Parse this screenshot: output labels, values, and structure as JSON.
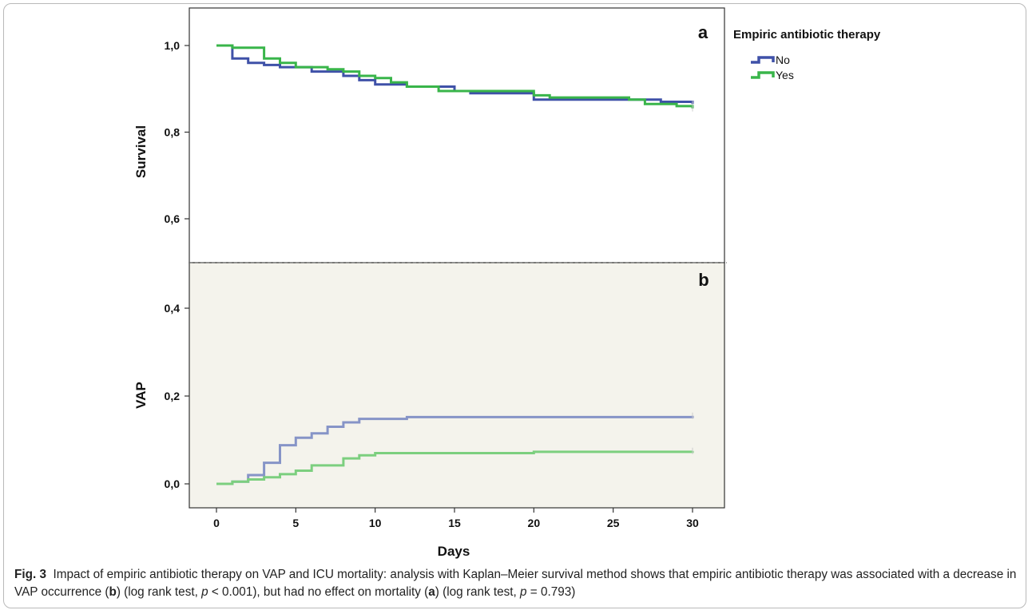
{
  "chart_data": [
    {
      "panel": "a",
      "type": "line",
      "step": true,
      "ylabel": "Survival",
      "xlabel": "",
      "xlim": [
        0,
        30
      ],
      "ylim": [
        0.5,
        1.05
      ],
      "yticks": [
        "1,0",
        "0,8",
        "0,6"
      ],
      "ytick_values": [
        1.0,
        0.8,
        0.6
      ],
      "background": "#ffffff",
      "series": [
        {
          "name": "No",
          "color": "#3f51a8",
          "x": [
            0,
            1,
            2,
            3,
            4,
            6,
            8,
            9,
            10,
            12,
            15,
            16,
            20,
            28,
            30
          ],
          "y": [
            1.0,
            0.97,
            0.96,
            0.955,
            0.95,
            0.94,
            0.93,
            0.92,
            0.91,
            0.905,
            0.895,
            0.89,
            0.875,
            0.87,
            0.865
          ]
        },
        {
          "name": "Yes",
          "color": "#39b54a",
          "x": [
            0,
            1,
            3,
            4,
            5,
            7,
            8,
            9,
            10,
            11,
            12,
            13,
            14,
            20,
            21,
            26,
            27,
            29,
            30
          ],
          "y": [
            1.0,
            0.995,
            0.97,
            0.96,
            0.95,
            0.945,
            0.94,
            0.93,
            0.925,
            0.915,
            0.905,
            0.905,
            0.895,
            0.885,
            0.88,
            0.875,
            0.865,
            0.86,
            0.855
          ]
        }
      ]
    },
    {
      "panel": "b",
      "type": "line",
      "step": true,
      "ylabel": "VAP",
      "xlabel": "Days",
      "xlim": [
        0,
        30
      ],
      "ylim": [
        -0.05,
        0.5
      ],
      "xticks": [
        "0",
        "5",
        "10",
        "15",
        "20",
        "25",
        "30"
      ],
      "xtick_values": [
        0,
        5,
        10,
        15,
        20,
        25,
        30
      ],
      "yticks": [
        "0,4",
        "0,2",
        "0,0"
      ],
      "ytick_values": [
        0.4,
        0.2,
        0.0
      ],
      "background": "#f4f3ec",
      "series": [
        {
          "name": "No",
          "color": "#8694c7",
          "x": [
            0,
            1,
            2,
            3,
            4,
            5,
            6,
            7,
            8,
            9,
            12,
            30
          ],
          "y": [
            0.0,
            0.005,
            0.02,
            0.048,
            0.088,
            0.105,
            0.115,
            0.13,
            0.14,
            0.148,
            0.152,
            0.155
          ]
        },
        {
          "name": "Yes",
          "color": "#7ccf7f",
          "x": [
            0,
            1,
            2,
            3,
            4,
            5,
            6,
            8,
            9,
            10,
            20,
            30
          ],
          "y": [
            0.0,
            0.005,
            0.01,
            0.015,
            0.022,
            0.03,
            0.042,
            0.058,
            0.065,
            0.07,
            0.073,
            0.075
          ]
        }
      ]
    }
  ],
  "panel_labels": {
    "a": "a",
    "b": "b"
  },
  "legend": {
    "title": "Empiric antibiotic therapy",
    "items": [
      {
        "label": "No",
        "color": "#3f51a8"
      },
      {
        "label": "Yes",
        "color": "#39b54a"
      }
    ]
  },
  "caption": {
    "fig_label": "Fig. 3",
    "text_1": "Impact of empiric antibiotic therapy on VAP and ICU mortality: analysis with Kaplan–Meier survival method shows that empiric antibiotic therapy was associated with a decrease in VAP occurrence (",
    "b_label": "b",
    "text_2": ") (log rank test, ",
    "p_symbol": "p",
    "text_3": " < 0.001), but had no effect on mortality (",
    "a_label": "a",
    "text_4": ") (log rank test, ",
    "text_5": " = 0.793)"
  },
  "colors": {
    "axis": "#333333",
    "divider": "#777777"
  }
}
